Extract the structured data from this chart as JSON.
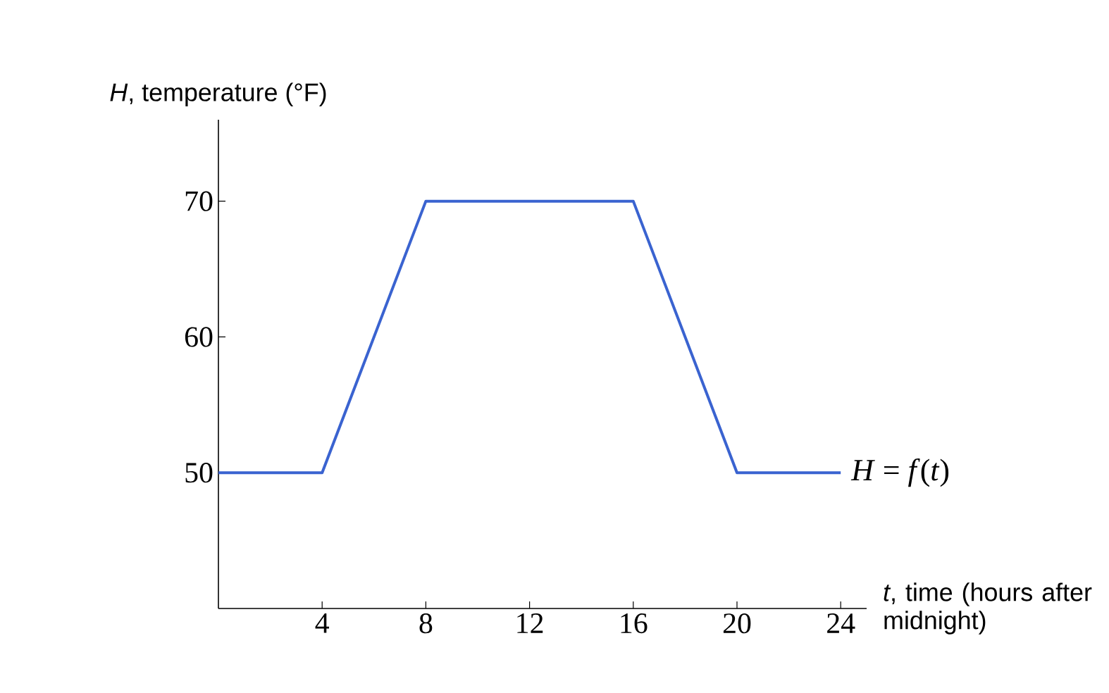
{
  "chart_data": {
    "type": "line",
    "xlabel": "*t*, time (hours after midnight)",
    "ylabel": "*H*, temperature (°F)",
    "x": [
      0,
      4,
      8,
      16,
      20,
      24
    ],
    "series": [
      {
        "color": "#3a63d0",
        "values": [
          50,
          50,
          70,
          70,
          50,
          50
        ]
      }
    ],
    "xlim": [
      0,
      25
    ],
    "ylim": [
      40,
      76
    ],
    "xticks": [
      4,
      8,
      12,
      16,
      20,
      24
    ],
    "yticks": [
      50,
      60,
      70
    ],
    "annotations": [
      {
        "text": "*H* = *f*(*t*)",
        "x": 24,
        "y": 50
      }
    ],
    "grid": false,
    "marker": "none",
    "line_style": "solid"
  }
}
